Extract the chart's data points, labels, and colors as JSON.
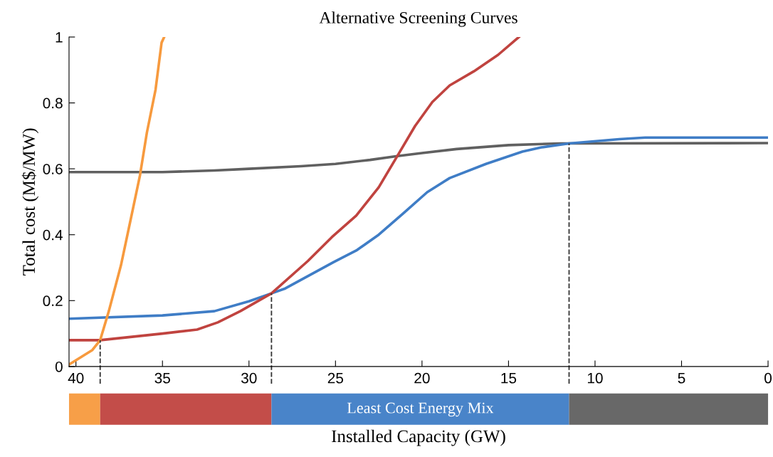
{
  "chart_data": {
    "type": "line",
    "title": "Alternative Screening Curves",
    "xlabel": "Installed Capacity (GW)",
    "ylabel": "Total cost (M$/MW)",
    "xlim": [
      40.4,
      0
    ],
    "xticks": [
      40,
      35,
      30,
      25,
      20,
      15,
      10,
      5,
      0
    ],
    "ylim": [
      0,
      1
    ],
    "yticks": [
      0,
      0.2,
      0.4,
      0.6,
      0.8,
      1
    ],
    "grid": false,
    "legend": false,
    "marker": "none",
    "line_style": "solid",
    "series": [
      {
        "color": "#606060",
        "x": [
          40.4,
          35,
          32,
          30,
          27,
          25,
          23,
          21.5,
          20,
          18,
          15,
          12,
          0
        ],
        "values": [
          0.59,
          0.59,
          0.595,
          0.6,
          0.608,
          0.615,
          0.627,
          0.638,
          0.648,
          0.66,
          0.672,
          0.677,
          0.678
        ]
      },
      {
        "color": "#3f7dc6",
        "x": [
          40.4,
          35,
          32,
          30,
          28.7,
          27.9,
          25.1,
          23.8,
          22.5,
          21.1,
          19.7,
          18.4,
          16.3,
          14.2,
          13.1,
          11.5,
          8.6,
          7.1,
          0
        ],
        "values": [
          0.145,
          0.155,
          0.168,
          0.198,
          0.222,
          0.237,
          0.317,
          0.352,
          0.4,
          0.464,
          0.529,
          0.572,
          0.615,
          0.652,
          0.665,
          0.677,
          0.69,
          0.695,
          0.695
        ]
      },
      {
        "color": "#c0433f",
        "x": [
          40.4,
          38.6,
          35,
          33,
          31.8,
          30.5,
          28.7,
          26.6,
          25.2,
          23.8,
          22.5,
          21.4,
          20.4,
          19.4,
          18.4,
          17,
          15.6,
          14.4
        ],
        "values": [
          0.08,
          0.08,
          0.1,
          0.112,
          0.134,
          0.168,
          0.222,
          0.32,
          0.393,
          0.458,
          0.544,
          0.641,
          0.73,
          0.803,
          0.853,
          0.896,
          0.946,
          1.0
        ]
      },
      {
        "color": "#f79a3e",
        "x": [
          40.4,
          39.05,
          38.6,
          38.1,
          37.4,
          36.7,
          36.3,
          35.9,
          35.4,
          35.05,
          34.9
        ],
        "values": [
          0.006,
          0.05,
          0.08,
          0.168,
          0.307,
          0.48,
          0.58,
          0.71,
          0.84,
          0.983,
          1.0
        ]
      }
    ],
    "ref_lines": [
      {
        "axis": "x",
        "value": 38.6,
        "color": "#333333",
        "line_style": "dashed"
      },
      {
        "axis": "x",
        "value": 28.7,
        "color": "#333333",
        "line_style": "dashed"
      },
      {
        "axis": "x",
        "value": 11.5,
        "color": "#333333",
        "line_style": "dashed"
      }
    ],
    "annotations": [
      "Least Cost Energy Mix"
    ]
  }
}
